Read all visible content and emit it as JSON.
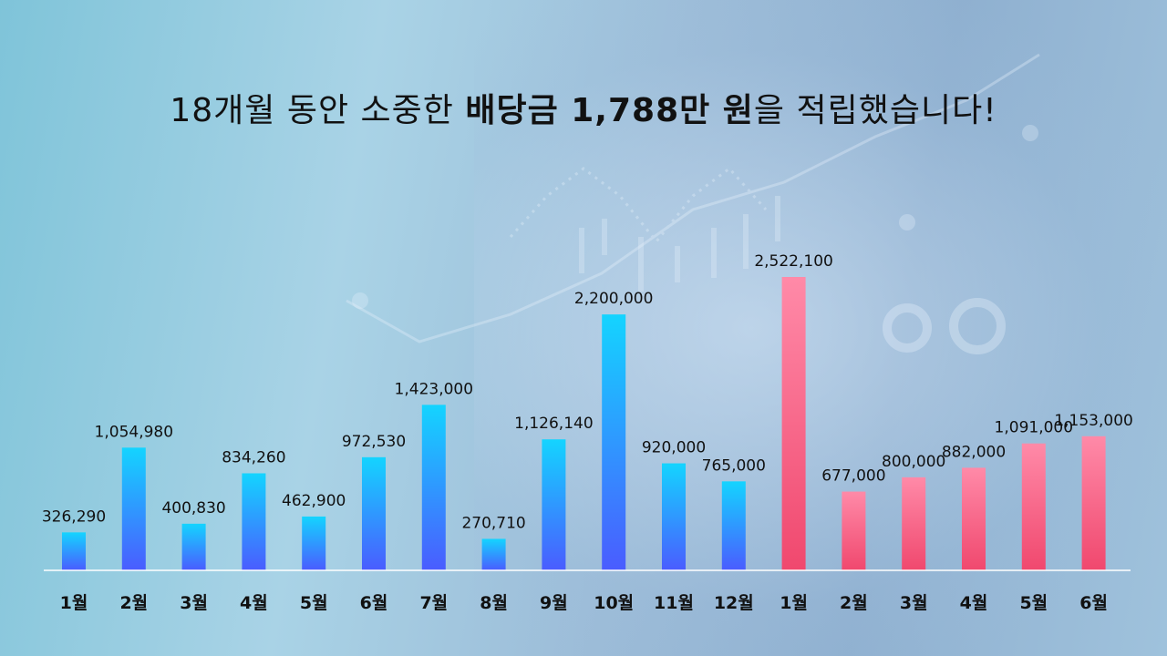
{
  "title": {
    "prefix": "18개월 동안 소중한 ",
    "bold1": "배당금 1,788만 원",
    "suffix": "을 적립했습니다!"
  },
  "colors": {
    "year1_top": "#14d4ff",
    "year1_bottom": "#4a5cff",
    "year2_top": "#ff8aa8",
    "year2_bottom": "#f0486e",
    "axis": "#ffffff",
    "label": "#111111"
  },
  "chart_data": {
    "type": "bar",
    "categories": [
      "1월",
      "2월",
      "3월",
      "4월",
      "5월",
      "6월",
      "7월",
      "8월",
      "9월",
      "10월",
      "11월",
      "12월",
      "1월",
      "2월",
      "3월",
      "4월",
      "5월",
      "6월"
    ],
    "values": [
      326290,
      1054980,
      400830,
      834260,
      462900,
      972530,
      1423000,
      270710,
      1126140,
      2200000,
      920000,
      765000,
      2522100,
      677000,
      800000,
      882000,
      1091000,
      1153000
    ],
    "value_labels": [
      "326,290",
      "1,054,980",
      "400,830",
      "834,260",
      "462,900",
      "972,530",
      "1,423,000",
      "270,710",
      "1,126,140",
      "2,200,000",
      "920,000",
      "765,000",
      "2,522,100",
      "677,000",
      "800,000",
      "882,000",
      "1,091,000",
      "1,153,000"
    ],
    "groups": [
      "year1",
      "year1",
      "year1",
      "year1",
      "year1",
      "year1",
      "year1",
      "year1",
      "year1",
      "year1",
      "year1",
      "year1",
      "year2",
      "year2",
      "year2",
      "year2",
      "year2",
      "year2"
    ],
    "ylim": [
      0,
      2522100
    ],
    "grid": false,
    "legend": "none",
    "xlabel": "",
    "ylabel": ""
  }
}
